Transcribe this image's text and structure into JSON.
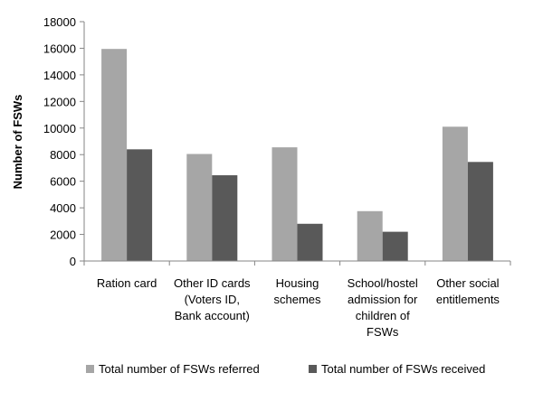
{
  "chart_data": {
    "type": "bar",
    "ylabel": "Number of FSWs",
    "ylim": [
      0,
      18000
    ],
    "yticks": [
      0,
      2000,
      4000,
      6000,
      8000,
      10000,
      12000,
      14000,
      16000,
      18000
    ],
    "grid": false,
    "legend_position": "bottom",
    "categories": [
      [
        "Ration card"
      ],
      [
        "Other ID cards",
        "(Voters ID,",
        "Bank account)"
      ],
      [
        "Housing",
        "schemes"
      ],
      [
        "School/hostel",
        "admission for",
        "children of",
        "FSWs"
      ],
      [
        "Other social",
        "entitlements"
      ]
    ],
    "series": [
      {
        "name": "Total number of FSWs referred",
        "color": "#a6a6a6",
        "values": [
          15950,
          8050,
          8550,
          3750,
          10100
        ]
      },
      {
        "name": "Total number of FSWs received",
        "color": "#595959",
        "values": [
          8400,
          6450,
          2800,
          2200,
          7450
        ]
      }
    ]
  }
}
